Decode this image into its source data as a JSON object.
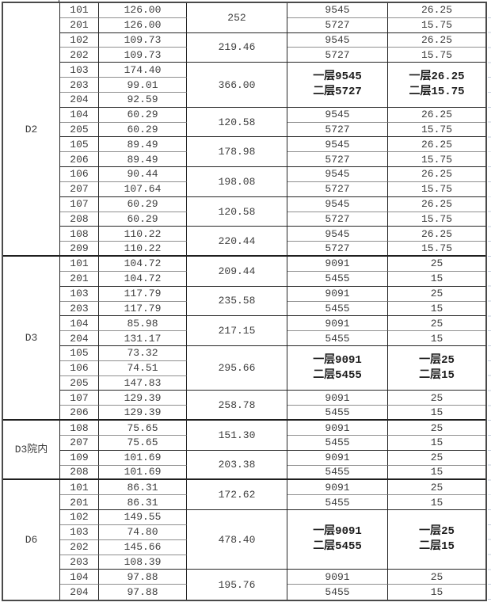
{
  "table": {
    "colors": {
      "outer_border": "#4a4a4a",
      "grid_black": "#262626",
      "grid_gray": "#8f8f8f",
      "section_border": "#1f1f1f",
      "text": "#3d3d3d",
      "sheet_gridline": "#c6cfde",
      "background": "#ffffff"
    },
    "sections": [
      {
        "label": "D2",
        "groups": [
          {
            "rooms": [
              {
                "no": "101",
                "area": "126.00"
              },
              {
                "no": "201",
                "area": "126.00"
              }
            ],
            "sum": "252",
            "price": [
              "9545",
              "5727"
            ],
            "pct": [
              "26.25",
              "15.75"
            ]
          },
          {
            "rooms": [
              {
                "no": "102",
                "area": "109.73"
              },
              {
                "no": "202",
                "area": "109.73"
              }
            ],
            "sum": "219.46",
            "price": [
              "9545",
              "5727"
            ],
            "pct": [
              "26.25",
              "15.75"
            ]
          },
          {
            "rooms": [
              {
                "no": "103",
                "area": "174.40"
              },
              {
                "no": "203",
                "area": "99.01"
              },
              {
                "no": "204",
                "area": "92.59"
              }
            ],
            "sum": "366.00",
            "price_merged": [
              "一层9545",
              "二层5727"
            ],
            "pct_merged": [
              "一层26.25",
              "二层15.75"
            ]
          },
          {
            "rooms": [
              {
                "no": "104",
                "area": "60.29"
              },
              {
                "no": "205",
                "area": "60.29"
              }
            ],
            "sum": "120.58",
            "price": [
              "9545",
              "5727"
            ],
            "pct": [
              "26.25",
              "15.75"
            ]
          },
          {
            "rooms": [
              {
                "no": "105",
                "area": "89.49"
              },
              {
                "no": "206",
                "area": "89.49"
              }
            ],
            "sum": "178.98",
            "price": [
              "9545",
              "5727"
            ],
            "pct": [
              "26.25",
              "15.75"
            ]
          },
          {
            "rooms": [
              {
                "no": "106",
                "area": "90.44"
              },
              {
                "no": "207",
                "area": "107.64"
              }
            ],
            "sum": "198.08",
            "price": [
              "9545",
              "5727"
            ],
            "pct": [
              "26.25",
              "15.75"
            ]
          },
          {
            "rooms": [
              {
                "no": "107",
                "area": "60.29"
              },
              {
                "no": "208",
                "area": "60.29"
              }
            ],
            "sum": "120.58",
            "price": [
              "9545",
              "5727"
            ],
            "pct": [
              "26.25",
              "15.75"
            ]
          },
          {
            "rooms": [
              {
                "no": "108",
                "area": "110.22"
              },
              {
                "no": "209",
                "area": "110.22"
              }
            ],
            "sum": "220.44",
            "price": [
              "9545",
              "5727"
            ],
            "pct": [
              "26.25",
              "15.75"
            ]
          }
        ]
      },
      {
        "label": "D3",
        "groups": [
          {
            "rooms": [
              {
                "no": "101",
                "area": "104.72"
              },
              {
                "no": "201",
                "area": "104.72"
              }
            ],
            "sum": "209.44",
            "price": [
              "9091",
              "5455"
            ],
            "pct": [
              "25",
              "15"
            ]
          },
          {
            "rooms": [
              {
                "no": "103",
                "area": "117.79"
              },
              {
                "no": "203",
                "area": "117.79"
              }
            ],
            "sum": "235.58",
            "price": [
              "9091",
              "5455"
            ],
            "pct": [
              "25",
              "15"
            ]
          },
          {
            "rooms": [
              {
                "no": "104",
                "area": "85.98"
              },
              {
                "no": "204",
                "area": "131.17"
              }
            ],
            "sum": "217.15",
            "price": [
              "9091",
              "5455"
            ],
            "pct": [
              "25",
              "15"
            ]
          },
          {
            "rooms": [
              {
                "no": "105",
                "area": "73.32"
              },
              {
                "no": "106",
                "area": "74.51"
              },
              {
                "no": "205",
                "area": "147.83"
              }
            ],
            "sum": "295.66",
            "price_merged": [
              "一层9091",
              "二层5455"
            ],
            "pct_merged": [
              "一层25",
              "二层15"
            ]
          },
          {
            "rooms": [
              {
                "no": "107",
                "area": "129.39"
              },
              {
                "no": "206",
                "area": "129.39"
              }
            ],
            "sum": "258.78",
            "price": [
              "9091",
              "5455"
            ],
            "pct": [
              "25",
              "15"
            ]
          }
        ]
      },
      {
        "label": "D3院内",
        "groups": [
          {
            "rooms": [
              {
                "no": "108",
                "area": "75.65"
              },
              {
                "no": "207",
                "area": "75.65"
              }
            ],
            "sum": "151.30",
            "price": [
              "9091",
              "5455"
            ],
            "pct": [
              "25",
              "15"
            ]
          },
          {
            "rooms": [
              {
                "no": "109",
                "area": "101.69"
              },
              {
                "no": "208",
                "area": "101.69"
              }
            ],
            "sum": "203.38",
            "price": [
              "9091",
              "5455"
            ],
            "pct": [
              "25",
              "15"
            ]
          }
        ]
      },
      {
        "label": "D6",
        "groups": [
          {
            "rooms": [
              {
                "no": "101",
                "area": "86.31"
              },
              {
                "no": "201",
                "area": "86.31"
              }
            ],
            "sum": "172.62",
            "price": [
              "9091",
              "5455"
            ],
            "pct": [
              "25",
              "15"
            ]
          },
          {
            "rooms": [
              {
                "no": "102",
                "area": "149.55"
              },
              {
                "no": "103",
                "area": "74.80"
              },
              {
                "no": "202",
                "area": "145.66"
              },
              {
                "no": "203",
                "area": "108.39"
              }
            ],
            "sum": "478.40",
            "price_merged": [
              "一层9091",
              "二层5455"
            ],
            "pct_merged": [
              "一层25",
              "二层15"
            ]
          },
          {
            "rooms": [
              {
                "no": "104",
                "area": "97.88"
              },
              {
                "no": "204",
                "area": "97.88"
              }
            ],
            "sum": "195.76",
            "price": [
              "9091",
              "5455"
            ],
            "pct": [
              "25",
              "15"
            ]
          }
        ]
      }
    ]
  }
}
